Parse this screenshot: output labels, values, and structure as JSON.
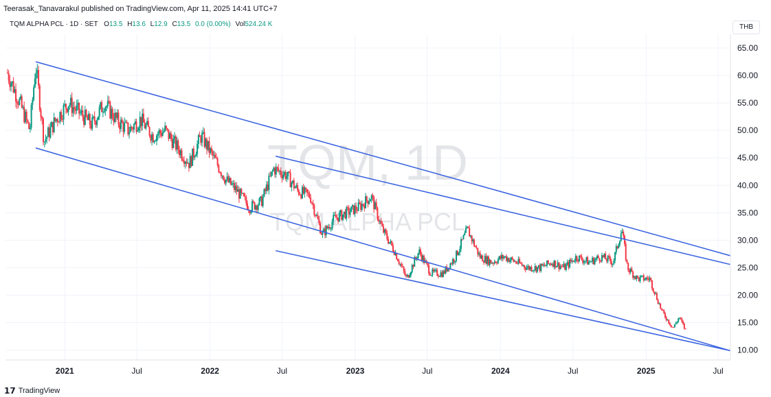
{
  "header": {
    "published": "Teerasak_Tanavarakul published on TradingView.com, Apr 11, 2025 14:41 UTC+7"
  },
  "legend": {
    "symbol": "TQM ALPHA PCL · 1D · SET",
    "o_label": "O",
    "o_value": "13.5",
    "h_label": "H",
    "h_value": "13.6",
    "l_label": "L",
    "l_value": "12.9",
    "c_label": "C",
    "c_value": "13.5",
    "change": "0.0 (0.00%)",
    "vol_label": "Vol",
    "vol_value": "524.24 K"
  },
  "currency": "THB",
  "watermark": {
    "ticker": "TQM, 1D",
    "name": "TQM ALPHA PCL"
  },
  "footer": {
    "brand": "TradingView"
  },
  "colors": {
    "up": "#089981",
    "down": "#f23645",
    "trendline": "#3d66e0",
    "grid": "#f0f3fa"
  },
  "chart_data": {
    "type": "line",
    "title": "",
    "xlabel": "",
    "ylabel": "",
    "x_ticks": [
      "2021",
      "Jul",
      "2022",
      "Jul",
      "2023",
      "Jul",
      "2024",
      "Jul",
      "2025",
      "Jul"
    ],
    "x_tick_dates": [
      "2021-01-01",
      "2021-07-01",
      "2022-01-01",
      "2022-07-01",
      "2023-01-01",
      "2023-07-01",
      "2024-01-01",
      "2024-07-01",
      "2025-01-01",
      "2025-07-01"
    ],
    "x_range": [
      "2020-08-05",
      "2025-08-01"
    ],
    "y_ticks": [
      "10.00",
      "15.00",
      "20.00",
      "25.00",
      "30.00",
      "35.00",
      "40.00",
      "45.00",
      "50.00",
      "55.00",
      "60.00",
      "65.00"
    ],
    "ylim": [
      8.2,
      67.5
    ],
    "grid": true,
    "series": [
      {
        "values": [
          [
            "2020-08-10",
            60.5
          ],
          [
            "2020-09-10",
            55
          ],
          [
            "2020-10-05",
            50
          ],
          [
            "2020-10-20",
            62
          ],
          [
            "2020-11-10",
            48
          ],
          [
            "2020-12-10",
            52
          ],
          [
            "2021-01-10",
            55
          ],
          [
            "2021-02-10",
            53
          ],
          [
            "2021-03-10",
            51
          ],
          [
            "2021-04-10",
            55
          ],
          [
            "2021-05-10",
            52
          ],
          [
            "2021-06-10",
            50
          ],
          [
            "2021-07-10",
            52
          ],
          [
            "2021-08-10",
            49
          ],
          [
            "2021-09-10",
            50
          ],
          [
            "2021-10-10",
            47
          ],
          [
            "2021-11-10",
            44
          ],
          [
            "2021-12-10",
            49
          ],
          [
            "2022-01-10",
            45
          ],
          [
            "2022-02-10",
            41
          ],
          [
            "2022-03-10",
            39
          ],
          [
            "2022-04-10",
            36
          ],
          [
            "2022-05-10",
            37
          ],
          [
            "2022-06-10",
            43
          ],
          [
            "2022-07-10",
            42
          ],
          [
            "2022-08-10",
            39
          ],
          [
            "2022-09-10",
            38
          ],
          [
            "2022-10-10",
            31
          ],
          [
            "2022-11-10",
            34
          ],
          [
            "2022-12-10",
            35
          ],
          [
            "2023-01-10",
            36
          ],
          [
            "2023-02-10",
            38
          ],
          [
            "2023-03-10",
            32
          ],
          [
            "2023-04-10",
            28
          ],
          [
            "2023-05-10",
            23
          ],
          [
            "2023-06-10",
            28
          ],
          [
            "2023-07-10",
            24
          ],
          [
            "2023-08-10",
            24
          ],
          [
            "2023-09-10",
            27
          ],
          [
            "2023-10-10",
            32
          ],
          [
            "2023-11-10",
            27
          ],
          [
            "2023-12-10",
            26
          ],
          [
            "2024-01-10",
            27
          ],
          [
            "2024-02-10",
            26
          ],
          [
            "2024-03-10",
            25
          ],
          [
            "2024-04-10",
            25
          ],
          [
            "2024-05-10",
            26
          ],
          [
            "2024-06-10",
            25
          ],
          [
            "2024-07-10",
            27
          ],
          [
            "2024-08-10",
            26
          ],
          [
            "2024-09-10",
            27
          ],
          [
            "2024-10-10",
            26
          ],
          [
            "2024-11-01",
            32
          ],
          [
            "2024-11-15",
            25
          ],
          [
            "2024-12-10",
            23
          ],
          [
            "2025-01-10",
            23
          ],
          [
            "2025-02-10",
            17
          ],
          [
            "2025-03-10",
            14
          ],
          [
            "2025-03-25",
            16
          ],
          [
            "2025-04-11",
            13.5
          ]
        ]
      }
    ],
    "trendlines": [
      {
        "from": [
          "2020-10-20",
          62.5
        ],
        "to": [
          "2025-07-31",
          27.2
        ]
      },
      {
        "from": [
          "2020-10-20",
          46.8
        ],
        "to": [
          "2025-07-31",
          9.9
        ]
      },
      {
        "from": [
          "2022-06-15",
          45.3
        ],
        "to": [
          "2025-07-31",
          25.6
        ]
      },
      {
        "from": [
          "2022-06-15",
          28.1
        ],
        "to": [
          "2025-07-31",
          9.9
        ]
      }
    ]
  }
}
